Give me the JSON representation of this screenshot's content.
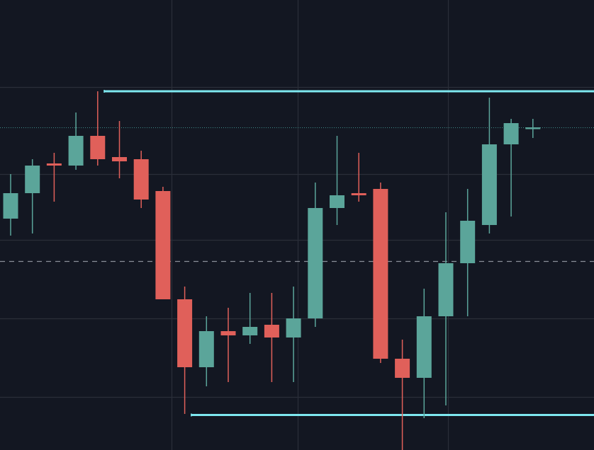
{
  "chart_data": {
    "type": "candlestick",
    "price_range": [
      0.0,
      21.2
    ],
    "horizontal_gridlines": [
      2.5,
      6.2,
      9.9,
      13.0,
      17.1
    ],
    "vertical_gridline_bars": [
      7.4,
      13.2,
      20.1
    ],
    "colors": {
      "background": "#131722",
      "grid": "#2a2e39",
      "up": "#5ba59a",
      "down": "#e0605a",
      "level": "#7ee8f0",
      "dashed_level": "#8a8f99",
      "dotted_level": "#3e8a88"
    },
    "levels": [
      {
        "kind": "resistance",
        "price": 16.9,
        "from_bar": 4.3
      },
      {
        "kind": "support",
        "price": 1.65,
        "from_bar": 8.3
      }
    ],
    "dashed_level_price": 8.9,
    "dotted_level_price": 15.2,
    "candles": [
      {
        "open": 10.9,
        "high": 13.0,
        "low": 10.1,
        "close": 12.1
      },
      {
        "open": 12.1,
        "high": 13.7,
        "low": 10.2,
        "close": 13.4
      },
      {
        "open": 13.5,
        "high": 14.0,
        "low": 11.7,
        "close": 13.4
      },
      {
        "open": 13.4,
        "high": 15.9,
        "low": 13.2,
        "close": 14.8
      },
      {
        "open": 14.8,
        "high": 16.9,
        "low": 13.4,
        "close": 13.7
      },
      {
        "open": 13.8,
        "high": 15.5,
        "low": 12.8,
        "close": 13.6
      },
      {
        "open": 13.7,
        "high": 14.1,
        "low": 11.4,
        "close": 11.8
      },
      {
        "open": 12.2,
        "high": 12.4,
        "low": 7.1,
        "close": 7.1
      },
      {
        "open": 7.1,
        "high": 7.7,
        "low": 1.7,
        "close": 3.9
      },
      {
        "open": 3.9,
        "high": 6.3,
        "low": 3.0,
        "close": 5.6
      },
      {
        "open": 5.6,
        "high": 6.7,
        "low": 3.2,
        "close": 5.4
      },
      {
        "open": 5.4,
        "high": 7.4,
        "low": 5.0,
        "close": 5.8
      },
      {
        "open": 5.9,
        "high": 7.4,
        "low": 3.2,
        "close": 5.3
      },
      {
        "open": 5.3,
        "high": 7.7,
        "low": 3.2,
        "close": 6.2
      },
      {
        "open": 6.2,
        "high": 12.6,
        "low": 5.8,
        "close": 11.4
      },
      {
        "open": 11.4,
        "high": 14.8,
        "low": 10.6,
        "close": 12.0
      },
      {
        "open": 12.1,
        "high": 14.0,
        "low": 11.7,
        "close": 12.0
      },
      {
        "open": 12.3,
        "high": 12.6,
        "low": 4.1,
        "close": 4.3
      },
      {
        "open": 4.3,
        "high": 5.2,
        "low": 0.0,
        "close": 3.4
      },
      {
        "open": 3.4,
        "high": 7.6,
        "low": 1.5,
        "close": 6.3
      },
      {
        "open": 6.3,
        "high": 11.2,
        "low": 2.1,
        "close": 8.8
      },
      {
        "open": 8.8,
        "high": 12.3,
        "low": 6.3,
        "close": 10.8
      },
      {
        "open": 10.6,
        "high": 16.6,
        "low": 10.2,
        "close": 14.4
      },
      {
        "open": 14.4,
        "high": 15.6,
        "low": 11.0,
        "close": 15.4
      },
      {
        "open": 15.2,
        "high": 15.6,
        "low": 14.7,
        "close": 15.2
      }
    ]
  }
}
